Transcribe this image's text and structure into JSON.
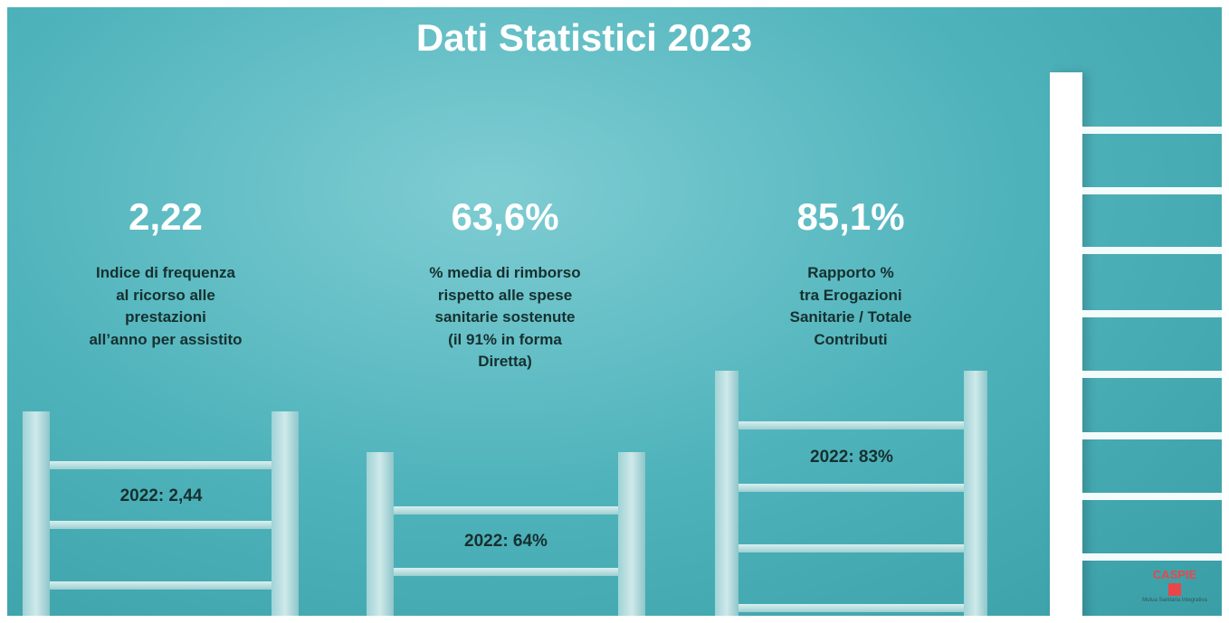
{
  "title": "Dati Statistici 2023",
  "stats": [
    {
      "value": "2,22",
      "description": [
        "Indice di frequenza",
        "al ricorso alle",
        "prestazioni",
        "all’anno per assistito"
      ],
      "previous": "2022: 2,44"
    },
    {
      "value": "63,6%",
      "description": [
        "% media di rimborso",
        "rispetto alle spese",
        "sanitarie sostenute",
        "(il 91% in forma",
        "Diretta)"
      ],
      "previous": "2022: 64%"
    },
    {
      "value": "85,1%",
      "description": [
        "Rapporto %",
        "tra Erogazioni",
        "Sanitarie / Totale",
        "Contributi"
      ],
      "previous": "2022: 83%"
    }
  ],
  "logo": {
    "name": "CASPIE",
    "tagline": "Mutua Sanitaria Integrativa"
  }
}
